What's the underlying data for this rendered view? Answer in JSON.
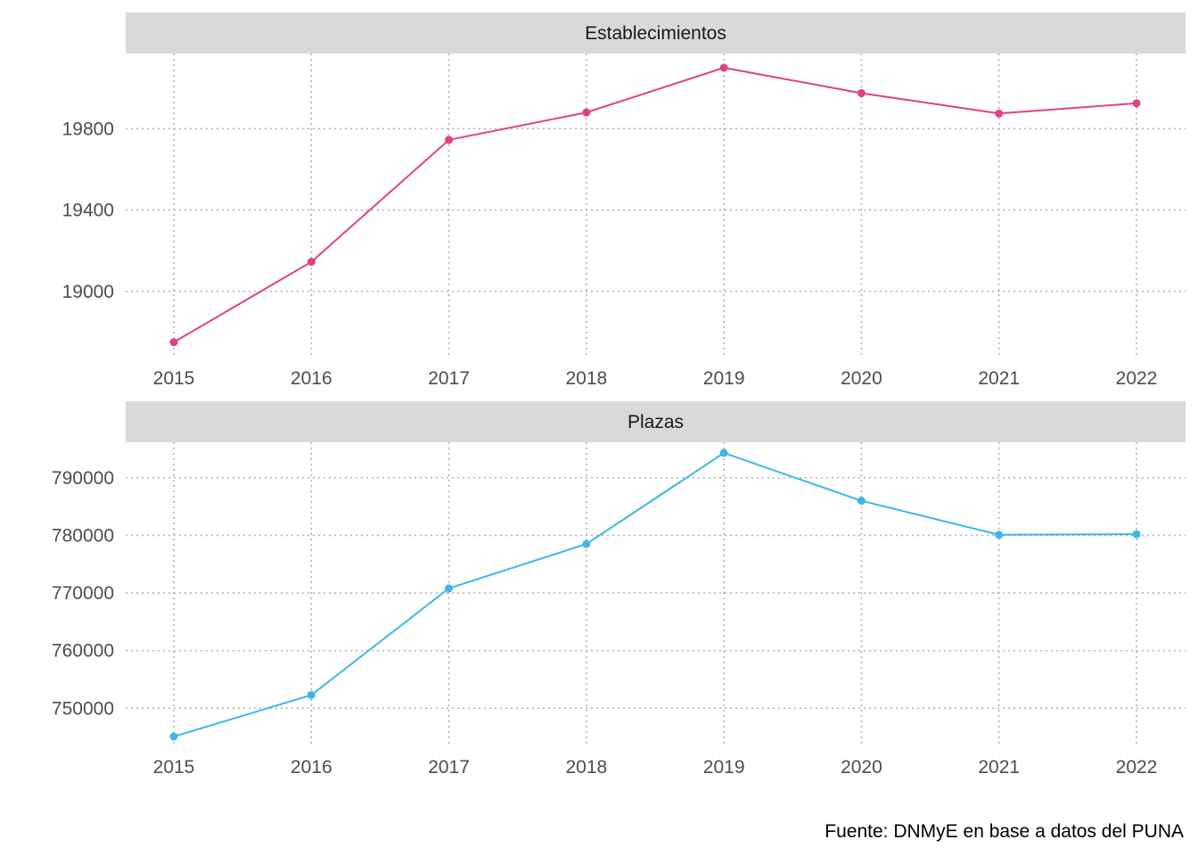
{
  "caption": "Fuente: DNMyE en base a datos del PUNA",
  "chart_data": [
    {
      "type": "line",
      "title": "Establecimientos",
      "x": [
        2015,
        2016,
        2017,
        2018,
        2019,
        2020,
        2021,
        2022
      ],
      "values": [
        18750,
        19145,
        19745,
        19880,
        20100,
        19975,
        19875,
        19925
      ],
      "yticks": [
        19000,
        19400,
        19800
      ],
      "ylim": [
        18670,
        20170
      ],
      "color": "#e0408a",
      "grid": true
    },
    {
      "type": "line",
      "title": "Plazas",
      "x": [
        2015,
        2016,
        2017,
        2018,
        2019,
        2020,
        2021,
        2022
      ],
      "values": [
        745100,
        752300,
        770800,
        778500,
        794300,
        786000,
        780100,
        780200
      ],
      "yticks": [
        750000,
        760000,
        770000,
        780000,
        790000
      ],
      "ylim": [
        743250,
        796150
      ],
      "color": "#3db8e5",
      "grid": true
    }
  ]
}
